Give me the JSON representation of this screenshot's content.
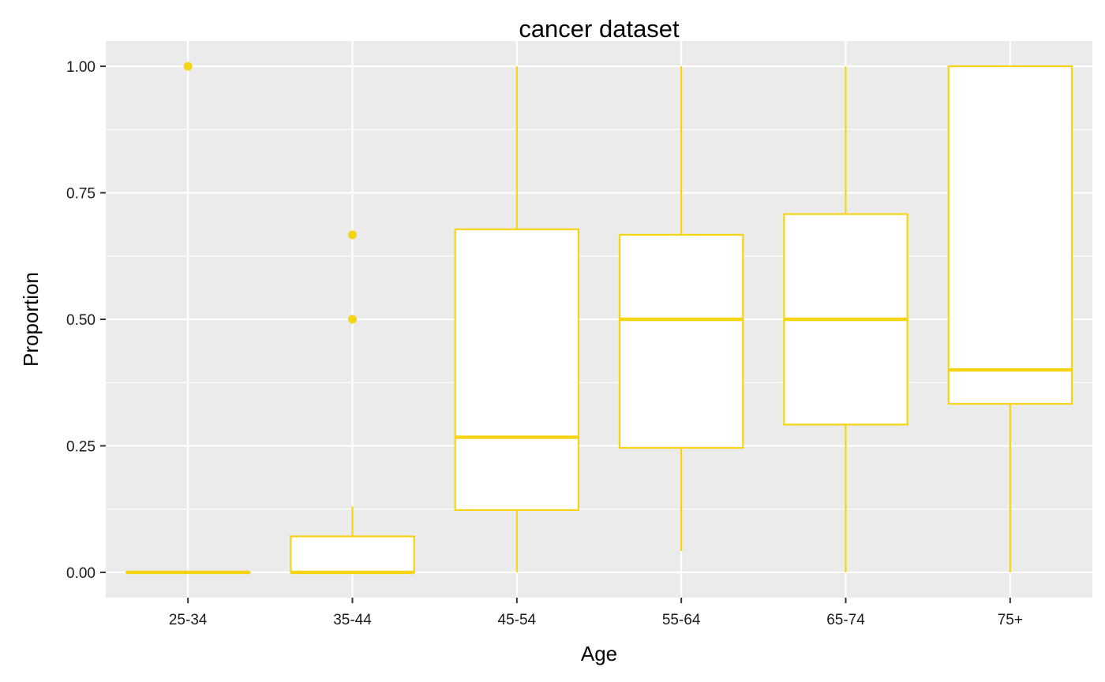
{
  "chart_data": {
    "type": "boxplot",
    "title": "cancer dataset",
    "xlabel": "Age",
    "ylabel": "Proportion",
    "categories": [
      "25-34",
      "35-44",
      "45-54",
      "55-64",
      "65-74",
      "75+"
    ],
    "ylim": [
      -0.05,
      1.05
    ],
    "y_ticks": [
      0,
      0.25,
      0.5,
      0.75,
      1
    ],
    "y_tick_labels": [
      "0.00",
      "0.25",
      "0.50",
      "0.75",
      "1.00"
    ],
    "grid": true,
    "color": "#F5D415",
    "panel_background": "#EBEBEB",
    "boxes": [
      {
        "category": "25-34",
        "lower_whisker": 0,
        "q1": 0,
        "median": 0,
        "q3": 0,
        "upper_whisker": 0,
        "outliers": [
          1.0
        ]
      },
      {
        "category": "35-44",
        "lower_whisker": 0,
        "q1": 0,
        "median": 0,
        "q3": 0.071,
        "upper_whisker": 0.13,
        "outliers": [
          0.667,
          0.5
        ]
      },
      {
        "category": "45-54",
        "lower_whisker": 0,
        "q1": 0.123,
        "median": 0.267,
        "q3": 0.678,
        "upper_whisker": 1.0,
        "outliers": []
      },
      {
        "category": "55-64",
        "lower_whisker": 0.042,
        "q1": 0.246,
        "median": 0.5,
        "q3": 0.667,
        "upper_whisker": 1.0,
        "outliers": []
      },
      {
        "category": "65-74",
        "lower_whisker": 0,
        "q1": 0.292,
        "median": 0.5,
        "q3": 0.708,
        "upper_whisker": 1.0,
        "outliers": []
      },
      {
        "category": "75+",
        "lower_whisker": 0,
        "q1": 0.333,
        "median": 0.4,
        "q3": 1.0,
        "upper_whisker": 1.0,
        "outliers": []
      }
    ]
  }
}
